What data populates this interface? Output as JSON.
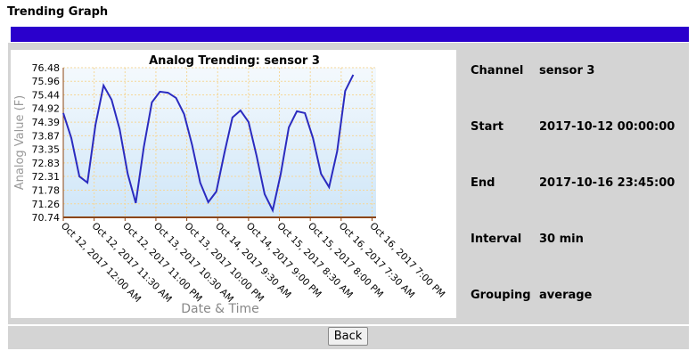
{
  "header": {
    "title": "Trending Graph"
  },
  "chart_data": {
    "type": "line",
    "title": "Analog Trending: sensor 3",
    "x_label": "Date & Time",
    "y_label": "Analog Value (F)",
    "x": [
      "Oct 12, 2017 12:00 AM",
      "Oct 12, 2017 3:00 AM",
      "Oct 12, 2017 6:00 AM",
      "Oct 12, 2017 9:00 AM",
      "Oct 12, 2017 12:00 PM",
      "Oct 12, 2017 3:00 PM",
      "Oct 12, 2017 6:00 PM",
      "Oct 12, 2017 9:00 PM",
      "Oct 13, 2017 12:00 AM",
      "Oct 13, 2017 3:00 AM",
      "Oct 13, 2017 6:00 AM",
      "Oct 13, 2017 9:00 AM",
      "Oct 13, 2017 12:00 PM",
      "Oct 13, 2017 3:00 PM",
      "Oct 13, 2017 6:00 PM",
      "Oct 13, 2017 9:00 PM",
      "Oct 14, 2017 12:00 AM",
      "Oct 14, 2017 3:00 AM",
      "Oct 14, 2017 6:00 AM",
      "Oct 14, 2017 9:00 AM",
      "Oct 14, 2017 12:00 PM",
      "Oct 14, 2017 3:00 PM",
      "Oct 14, 2017 6:00 PM",
      "Oct 14, 2017 9:00 PM",
      "Oct 15, 2017 12:00 AM",
      "Oct 15, 2017 3:00 AM",
      "Oct 15, 2017 6:00 AM",
      "Oct 15, 2017 9:00 AM",
      "Oct 15, 2017 12:00 PM",
      "Oct 15, 2017 3:00 PM",
      "Oct 15, 2017 6:00 PM",
      "Oct 15, 2017 9:00 PM",
      "Oct 16, 2017 12:00 AM",
      "Oct 16, 2017 3:00 AM",
      "Oct 16, 2017 6:00 AM",
      "Oct 16, 2017 9:00 AM",
      "Oct 16, 2017 12:00 PM"
    ],
    "series": [
      {
        "name": "sensor 3",
        "color": "#2b2bbf",
        "values": [
          74.74,
          73.78,
          72.31,
          72.07,
          74.29,
          75.8,
          75.25,
          74.12,
          72.41,
          71.29,
          73.44,
          75.15,
          75.56,
          75.52,
          75.32,
          74.7,
          73.51,
          72.07,
          71.32,
          71.73,
          73.2,
          74.57,
          74.84,
          74.4,
          73.1,
          71.63,
          71.01,
          72.41,
          74.19,
          74.81,
          74.74,
          73.78,
          72.41,
          71.9,
          73.27,
          75.59,
          76.21
        ]
      }
    ],
    "xlim": [
      "Oct 12, 2017 12:00 AM",
      "Oct 16, 2017 8:30 PM"
    ],
    "xticks": [
      "Oct 12, 2017 12:00 AM",
      "Oct 12, 2017 11:30 AM",
      "Oct 12, 2017 11:00 PM",
      "Oct 13, 2017 10:30 AM",
      "Oct 13, 2017 10:00 PM",
      "Oct 14, 2017 9:30 AM",
      "Oct 14, 2017 9:00 PM",
      "Oct 15, 2017 8:30 AM",
      "Oct 15, 2017 8:00 PM",
      "Oct 16, 2017 7:30 AM",
      "Oct 16, 2017 7:00 PM"
    ],
    "ylim": [
      70.74,
      76.48
    ],
    "yticks": [
      70.74,
      71.26,
      71.78,
      72.31,
      72.83,
      73.35,
      73.87,
      74.39,
      74.92,
      75.44,
      75.96,
      76.48
    ],
    "grid": true
  },
  "info": {
    "rows": [
      [
        "Channel",
        "sensor 3"
      ],
      [
        "Start",
        "2017-10-12 00:00:00"
      ],
      [
        "End",
        "2017-10-16 23:45:00"
      ],
      [
        "Interval",
        "30 min"
      ],
      [
        "Grouping",
        "average"
      ]
    ]
  },
  "button": {
    "label": "Back"
  }
}
